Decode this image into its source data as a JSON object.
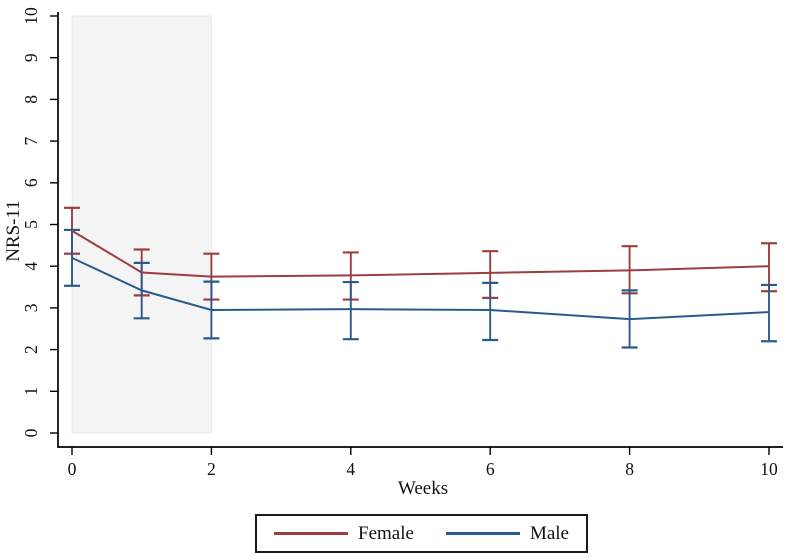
{
  "figure": {
    "ylabel": "NRS-11",
    "xlabel": "Weeks",
    "background": "#ffffff",
    "axis_color": "#000000"
  },
  "legend": {
    "position": "bottom",
    "items": [
      {
        "label": "Female",
        "color": "#9c3d41"
      },
      {
        "label": "Male",
        "color": "#2a5a8c"
      }
    ]
  },
  "chart_data": {
    "type": "line",
    "title": "",
    "xlabel": "Weeks",
    "ylabel": "NRS-11",
    "x": [
      0,
      1,
      2,
      4,
      6,
      8,
      10
    ],
    "xticks": [
      0,
      2,
      4,
      6,
      8,
      10
    ],
    "yticks": [
      0,
      1,
      2,
      3,
      4,
      5,
      6,
      7,
      8,
      9,
      10
    ],
    "xlim": [
      0,
      10
    ],
    "ylim": [
      0,
      10
    ],
    "grid": false,
    "error_bars": true,
    "legend_position": "bottom",
    "shaded_region": {
      "x_start": 0,
      "x_end": 2,
      "y_start": 0,
      "y_end": 10,
      "color": "#f4f4f4",
      "border_color": "#e9e9e9"
    },
    "series": [
      {
        "name": "Female",
        "color": "#9c3d41",
        "values": [
          4.85,
          3.85,
          3.75,
          3.78,
          3.84,
          3.9,
          4.0
        ],
        "ci_low": [
          4.3,
          3.3,
          3.2,
          3.2,
          3.24,
          3.35,
          3.4
        ],
        "ci_high": [
          5.4,
          4.4,
          4.3,
          4.33,
          4.36,
          4.48,
          4.55
        ]
      },
      {
        "name": "Male",
        "color": "#2a5a8c",
        "values": [
          4.2,
          3.42,
          2.95,
          2.97,
          2.95,
          2.73,
          2.9
        ],
        "ci_low": [
          3.53,
          2.75,
          2.27,
          2.25,
          2.23,
          2.05,
          2.2
        ],
        "ci_high": [
          4.87,
          4.08,
          3.63,
          3.62,
          3.6,
          3.42,
          3.55
        ]
      }
    ]
  }
}
